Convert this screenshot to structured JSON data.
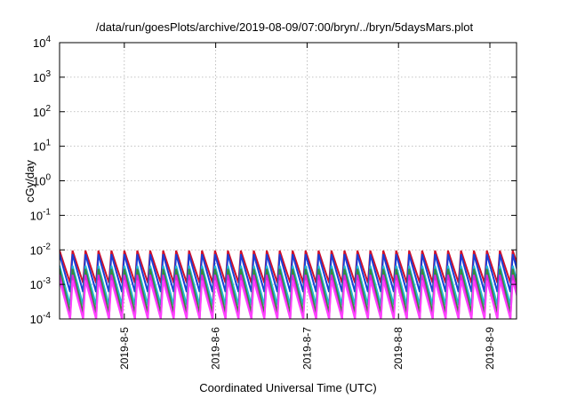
{
  "chart_data": {
    "type": "line",
    "title": "/data/run/goesPlots/archive/2019-08-09/07:00/bryn/../bryn/5daysMars.plot",
    "xlabel": "Coordinated Universal Time (UTC)",
    "ylabel": "cGy/day",
    "y_scale": "log",
    "ylim": [
      0.0001,
      10000
    ],
    "y_ticks": [
      {
        "value": 0.0001,
        "base": "10",
        "exp": "-4"
      },
      {
        "value": 0.001,
        "base": "10",
        "exp": "-3"
      },
      {
        "value": 0.01,
        "base": "10",
        "exp": "-2"
      },
      {
        "value": 0.1,
        "base": "10",
        "exp": "-1"
      },
      {
        "value": 1,
        "base": "10",
        "exp": "0"
      },
      {
        "value": 10,
        "base": "10",
        "exp": "1"
      },
      {
        "value": 100,
        "base": "10",
        "exp": "2"
      },
      {
        "value": 1000,
        "base": "10",
        "exp": "3"
      },
      {
        "value": 10000,
        "base": "10",
        "exp": "4"
      }
    ],
    "xlim": [
      "2019-08-04 07:00",
      "2019-08-09 07:00"
    ],
    "x_ticks": [
      {
        "value": "2019-08-05 00:00",
        "label": "2019-8-5"
      },
      {
        "value": "2019-08-06 00:00",
        "label": "2019-8-6"
      },
      {
        "value": "2019-08-07 00:00",
        "label": "2019-8-7"
      },
      {
        "value": "2019-08-08 00:00",
        "label": "2019-8-8"
      },
      {
        "value": "2019-08-09 00:00",
        "label": "2019-8-9"
      }
    ],
    "grid": true,
    "series": [
      {
        "color": "#d0102a",
        "period_hours": 3.4,
        "peak": 0.0095,
        "trough": 0.0011
      },
      {
        "color": "#1a3fd8",
        "period_hours": 3.4,
        "peak": 0.0075,
        "trough": 0.0006
      },
      {
        "color": "#20b8d8",
        "period_hours": 3.4,
        "peak": 0.0035,
        "trough": 0.00025
      },
      {
        "color": "#3a8a3a",
        "period_hours": 3.4,
        "peak": 0.0028,
        "trough": 0.00015
      },
      {
        "color": "#e020e0",
        "period_hours": 3.4,
        "peak": 0.0019,
        "trough": 0.0001
      },
      {
        "color": "#ff40ff",
        "period_hours": 3.4,
        "peak": 0.0013,
        "trough": 0.0001
      }
    ]
  }
}
